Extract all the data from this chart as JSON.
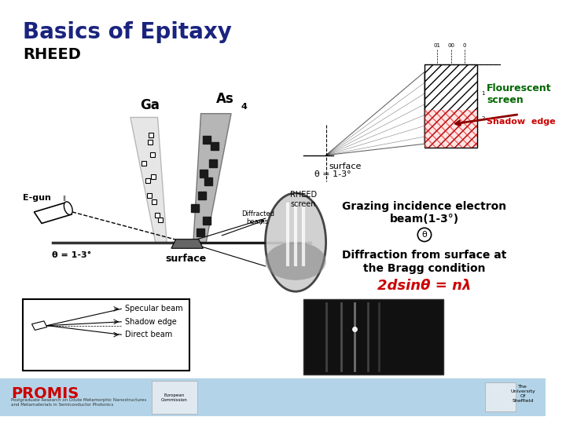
{
  "title": "Basics of Epitaxy",
  "title_color": "#1a237e",
  "title_fontsize": 20,
  "subtitle": "RHEED",
  "subtitle_fontsize": 14,
  "subtitle_color": "#000000",
  "bg_color": "#ffffff",
  "footer_bg": "#b3d4e8",
  "flourescent_screen": "Flourescent\nscreen",
  "shadow_edge_label": "Shadow  edge",
  "surface_label": "surface",
  "theta_label": "θ = 1-3°",
  "egun_label": "E-gun",
  "ga_label": "Ga",
  "as_label": "As",
  "as_sub": "4",
  "surface_label2": "surface",
  "specular_beam": "Specular beam",
  "shadow_edge2": "Shadow edge",
  "direct_beam": "Direct beam",
  "rheed_screen": "RHEED\nscreen",
  "diffracted_beams": "Diffracted\nbeams",
  "grazing_text1": "Grazing incidence electron",
  "grazing_text2": "beam(1-3°)",
  "grazing_color": "#000000",
  "diffraction_text1": "Diffraction from surface at",
  "diffraction_text2": "the Bragg condition",
  "formula": "2dsinθ = nλ",
  "formula_color": "#cc0000",
  "promis_color": "#cc0000",
  "promis_text": "PROMIS",
  "promis_sub": "Postgraduate Research on Dilute Metamorphic Nanostructures\nand Metamaterials in Semiconductor Photonics",
  "sheffield": "The\nUniversity\nOf\nSheffield"
}
